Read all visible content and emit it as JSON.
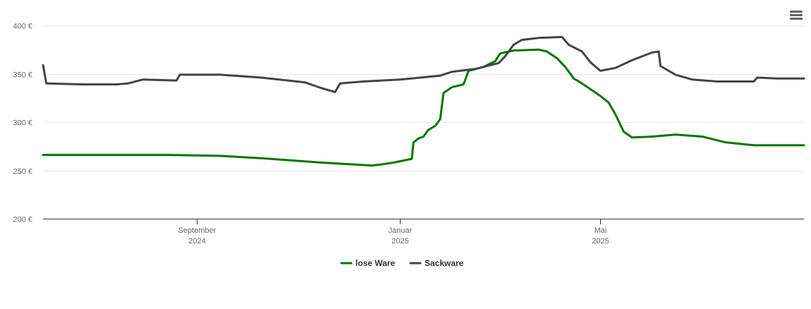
{
  "menu": {
    "icon": "hamburger-menu-icon"
  },
  "chart_data": {
    "type": "line",
    "title": "",
    "xlabel": "",
    "ylabel": "",
    "ylim": [
      200,
      400
    ],
    "y_ticks": [
      {
        "value": 200,
        "label": "200 €"
      },
      {
        "value": 250,
        "label": "250 €"
      },
      {
        "value": 300,
        "label": "300 €"
      },
      {
        "value": 350,
        "label": "350 €"
      },
      {
        "value": 400,
        "label": "400 €"
      }
    ],
    "xlim": [
      "2024-06-01",
      "2025-08-31"
    ],
    "x_ticks": [
      {
        "date": "2024-09-01",
        "line1": "September",
        "line2": "2024"
      },
      {
        "date": "2025-01-01",
        "line1": "Januar",
        "line2": "2025"
      },
      {
        "date": "2025-05-01",
        "line1": "Mai",
        "line2": "2025"
      }
    ],
    "grid": "horizontal",
    "legend_position": "bottom-center",
    "series": [
      {
        "name": "lose Ware",
        "color": "#007700",
        "points": [
          [
            "2024-06-01",
            266
          ],
          [
            "2024-07-15",
            266
          ],
          [
            "2024-08-15",
            266
          ],
          [
            "2024-09-15",
            265
          ],
          [
            "2024-10-15",
            262
          ],
          [
            "2024-11-15",
            258
          ],
          [
            "2024-12-15",
            255
          ],
          [
            "2024-12-20",
            256
          ],
          [
            "2024-12-28",
            258
          ],
          [
            "2025-01-08",
            262
          ],
          [
            "2025-01-09",
            279
          ],
          [
            "2025-01-12",
            283
          ],
          [
            "2025-01-15",
            285
          ],
          [
            "2025-01-18",
            292
          ],
          [
            "2025-01-22",
            296
          ],
          [
            "2025-01-25",
            303
          ],
          [
            "2025-01-27",
            330
          ],
          [
            "2025-02-01",
            336
          ],
          [
            "2025-02-08",
            339
          ],
          [
            "2025-02-11",
            353
          ],
          [
            "2025-02-20",
            357
          ],
          [
            "2025-02-27",
            363
          ],
          [
            "2025-03-02",
            371
          ],
          [
            "2025-03-10",
            374
          ],
          [
            "2025-03-25",
            375
          ],
          [
            "2025-03-30",
            373
          ],
          [
            "2025-04-05",
            366
          ],
          [
            "2025-04-10",
            357
          ],
          [
            "2025-04-15",
            345
          ],
          [
            "2025-04-20",
            340
          ],
          [
            "2025-05-01",
            327
          ],
          [
            "2025-05-06",
            320
          ],
          [
            "2025-05-10",
            308
          ],
          [
            "2025-05-15",
            290
          ],
          [
            "2025-05-20",
            284
          ],
          [
            "2025-06-01",
            285
          ],
          [
            "2025-06-15",
            287
          ],
          [
            "2025-07-01",
            285
          ],
          [
            "2025-07-15",
            279
          ],
          [
            "2025-08-01",
            276
          ],
          [
            "2025-08-31",
            276
          ]
        ]
      },
      {
        "name": "Sackware",
        "color": "#434348",
        "points": [
          [
            "2024-06-01",
            359
          ],
          [
            "2024-06-03",
            340
          ],
          [
            "2024-06-25",
            339
          ],
          [
            "2024-07-15",
            339
          ],
          [
            "2024-07-22",
            340
          ],
          [
            "2024-07-31",
            344
          ],
          [
            "2024-08-20",
            343
          ],
          [
            "2024-08-22",
            349
          ],
          [
            "2024-09-15",
            349
          ],
          [
            "2024-10-10",
            346
          ],
          [
            "2024-11-05",
            341
          ],
          [
            "2024-11-15",
            335
          ],
          [
            "2024-11-23",
            331
          ],
          [
            "2024-11-26",
            340
          ],
          [
            "2024-12-10",
            342
          ],
          [
            "2025-01-01",
            344
          ],
          [
            "2025-01-25",
            348
          ],
          [
            "2025-02-01",
            352
          ],
          [
            "2025-02-15",
            355
          ],
          [
            "2025-03-01",
            361
          ],
          [
            "2025-03-05",
            368
          ],
          [
            "2025-03-10",
            380
          ],
          [
            "2025-03-15",
            385
          ],
          [
            "2025-03-25",
            387
          ],
          [
            "2025-04-08",
            388
          ],
          [
            "2025-04-12",
            380
          ],
          [
            "2025-04-20",
            373
          ],
          [
            "2025-04-25",
            362
          ],
          [
            "2025-05-01",
            353
          ],
          [
            "2025-05-10",
            356
          ],
          [
            "2025-05-20",
            364
          ],
          [
            "2025-06-01",
            372
          ],
          [
            "2025-06-05",
            373
          ],
          [
            "2025-06-06",
            358
          ],
          [
            "2025-06-15",
            349
          ],
          [
            "2025-06-25",
            344
          ],
          [
            "2025-07-10",
            342
          ],
          [
            "2025-08-01",
            342
          ],
          [
            "2025-08-03",
            346
          ],
          [
            "2025-08-15",
            345
          ],
          [
            "2025-08-31",
            345
          ]
        ]
      }
    ]
  }
}
